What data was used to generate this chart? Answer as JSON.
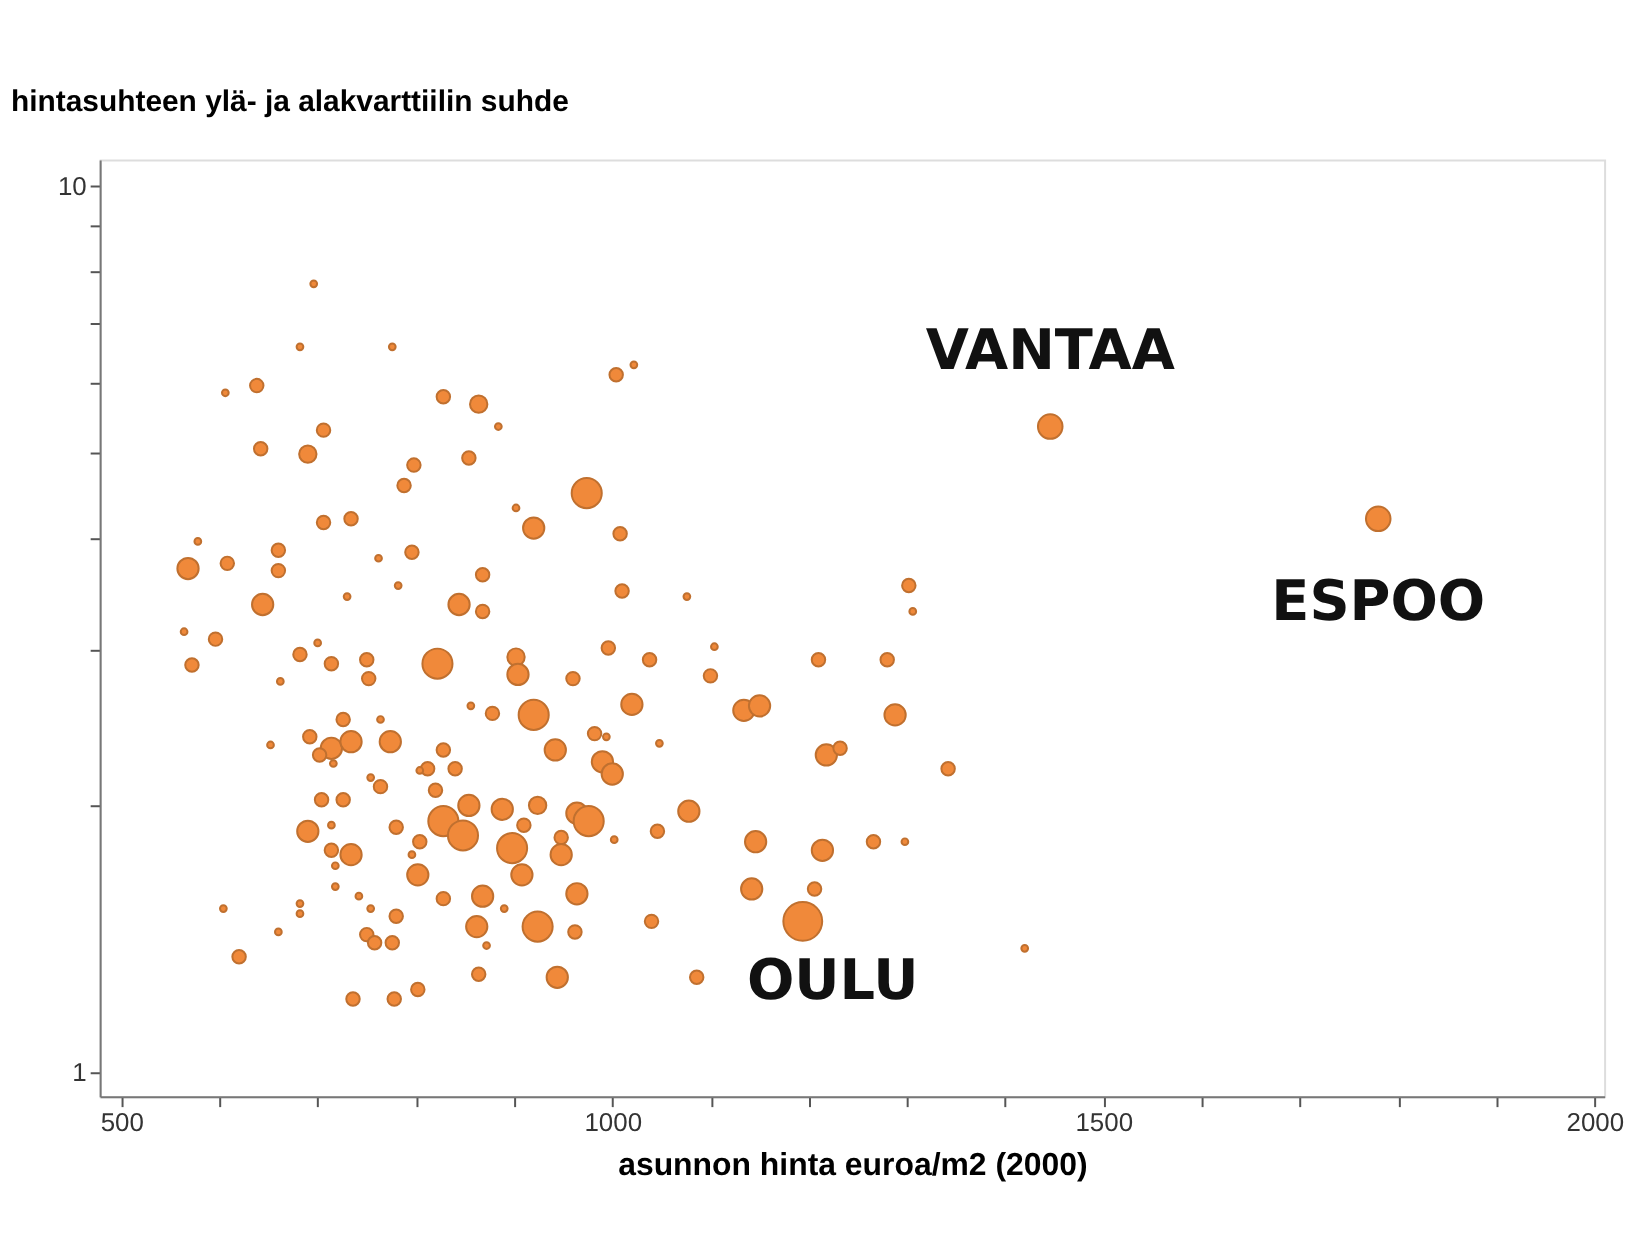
{
  "chart_data": {
    "type": "bubble",
    "ylabel": "hintasuhteen ylä- ja alakvarttiilin suhde",
    "xlabel": "asunnon hinta euroa/m2 (2000)",
    "log": "y",
    "grid": false,
    "xlim": [
      478,
      2010
    ],
    "ylim": [
      0.94,
      10.7
    ],
    "xticks": [
      500,
      {
        "value": 600,
        "label": null
      },
      {
        "value": 700,
        "label": null
      },
      {
        "value": 800,
        "label": null
      },
      {
        "value": 900,
        "label": null
      },
      1000,
      {
        "value": 1100,
        "label": null
      },
      {
        "value": 1200,
        "label": null
      },
      {
        "value": 1300,
        "label": null
      },
      {
        "value": 1400,
        "label": null
      },
      1500,
      {
        "value": 1600,
        "label": null
      },
      {
        "value": 1700,
        "label": null
      },
      {
        "value": 1800,
        "label": null
      },
      {
        "value": 1900,
        "label": null
      },
      2000
    ],
    "yticks": [
      1,
      {
        "value": 2,
        "label": null
      },
      {
        "value": 3,
        "label": null
      },
      {
        "value": 4,
        "label": null
      },
      {
        "value": 5,
        "label": null
      },
      {
        "value": 6,
        "label": null
      },
      {
        "value": 7,
        "label": null
      },
      {
        "value": 8,
        "label": null
      },
      {
        "value": 9,
        "label": null
      },
      10
    ],
    "series": [
      {
        "color": "#f0893a",
        "x": [
          696,
          682,
          776,
          606,
          638,
          828,
          864,
          884,
          706,
          642,
          690,
          798,
          854,
          788,
          1004,
          1022,
          974,
          920,
          902,
          1008,
          706,
          734,
          578,
          568,
          608,
          660,
          660,
          762,
          796,
          782,
          868,
          730,
          644,
          844,
          868,
          1010,
          1446,
          1076,
          1302,
          1306,
          564,
          596,
          572,
          682,
          700,
          714,
          750,
          752,
          822,
          902,
          904,
          960,
          662,
          856,
          878,
          920,
          1020,
          726,
          764,
          652,
          692,
          714,
          702,
          734,
          774,
          716,
          828,
          812,
          804,
          840,
          820,
          754,
          764,
          942,
          982,
          994,
          990,
          1000,
          704,
          726,
          690,
          714,
          780,
          828,
          848,
          854,
          888,
          924,
          910,
          964,
          976,
          1002,
          804,
          796,
          714,
          734,
          718,
          898,
          948,
          948,
          802,
          908,
          718,
          742,
          754,
          828,
          868,
          890,
          964,
          604,
          682,
          682,
          780,
          862,
          924,
          962,
          660,
          750,
          758,
          776,
          872,
          620,
          864,
          944,
          802,
          736,
          778,
          996,
          1038,
          1104,
          1100,
          1210,
          1280,
          1134,
          1150,
          1048,
          1288,
          1218,
          1232,
          1342,
          1078,
          1046,
          1146,
          1214,
          1266,
          1298,
          1142,
          1206,
          1194,
          1040,
          1086,
          1420,
          1780
        ],
        "values": [
          7.75,
          6.58,
          6.58,
          5.84,
          5.95,
          5.78,
          5.67,
          5.35,
          5.3,
          5.05,
          4.98,
          4.84,
          4.93,
          4.59,
          6.12,
          6.28,
          4.5,
          4.11,
          4.33,
          4.05,
          4.17,
          4.21,
          3.97,
          3.7,
          3.75,
          3.88,
          3.68,
          3.8,
          3.86,
          3.54,
          3.64,
          3.44,
          3.37,
          3.37,
          3.31,
          3.49,
          5.35,
          3.44,
          3.54,
          3.31,
          3.14,
          3.08,
          2.88,
          2.96,
          3.05,
          2.89,
          2.92,
          2.78,
          2.89,
          2.94,
          2.81,
          2.78,
          2.76,
          2.59,
          2.54,
          2.53,
          2.6,
          2.5,
          2.5,
          2.34,
          2.39,
          2.32,
          2.28,
          2.36,
          2.36,
          2.23,
          2.31,
          2.2,
          2.19,
          2.2,
          2.08,
          2.15,
          2.1,
          2.31,
          2.41,
          2.39,
          2.24,
          2.17,
          2.03,
          2.03,
          1.87,
          1.9,
          1.89,
          1.92,
          1.85,
          2.0,
          1.98,
          2.0,
          1.9,
          1.96,
          1.92,
          1.83,
          1.82,
          1.76,
          1.78,
          1.76,
          1.71,
          1.79,
          1.84,
          1.76,
          1.67,
          1.67,
          1.62,
          1.58,
          1.53,
          1.57,
          1.58,
          1.53,
          1.59,
          1.53,
          1.55,
          1.51,
          1.5,
          1.46,
          1.46,
          1.44,
          1.44,
          1.43,
          1.4,
          1.4,
          1.39,
          1.35,
          1.29,
          1.28,
          1.24,
          1.21,
          1.21,
          3.01,
          2.92,
          3.02,
          2.8,
          2.92,
          2.92,
          2.56,
          2.59,
          2.35,
          2.53,
          2.28,
          2.32,
          2.2,
          1.97,
          1.87,
          1.82,
          1.78,
          1.82,
          1.82,
          1.61,
          1.61,
          1.48,
          1.48,
          1.28,
          1.38,
          4.21
        ],
        "sizes": [
          0.03,
          0.03,
          0.03,
          0.03,
          0.12,
          0.12,
          0.2,
          0.03,
          0.12,
          0.12,
          0.2,
          0.12,
          0.12,
          0.12,
          0.12,
          0.03,
          0.6,
          0.3,
          0.03,
          0.12,
          0.12,
          0.12,
          0.03,
          0.3,
          0.12,
          0.12,
          0.12,
          0.03,
          0.12,
          0.03,
          0.12,
          0.03,
          0.3,
          0.3,
          0.12,
          0.12,
          0.4,
          0.03,
          0.12,
          0.03,
          0.03,
          0.12,
          0.12,
          0.12,
          0.03,
          0.12,
          0.12,
          0.12,
          0.6,
          0.2,
          0.3,
          0.12,
          0.03,
          0.03,
          0.12,
          0.6,
          0.3,
          0.12,
          0.03,
          0.03,
          0.12,
          0.3,
          0.12,
          0.3,
          0.3,
          0.03,
          0.12,
          0.12,
          0.03,
          0.12,
          0.12,
          0.03,
          0.12,
          0.3,
          0.12,
          0.03,
          0.3,
          0.3,
          0.12,
          0.12,
          0.3,
          0.03,
          0.12,
          0.6,
          0.6,
          0.3,
          0.3,
          0.2,
          0.12,
          0.3,
          0.6,
          0.03,
          0.12,
          0.03,
          0.12,
          0.3,
          0.03,
          0.6,
          0.12,
          0.3,
          0.3,
          0.3,
          0.03,
          0.03,
          0.03,
          0.12,
          0.3,
          0.03,
          0.3,
          0.03,
          0.03,
          0.03,
          0.12,
          0.3,
          0.6,
          0.12,
          0.03,
          0.12,
          0.12,
          0.12,
          0.03,
          0.12,
          0.12,
          0.3,
          0.12,
          0.12,
          0.12,
          0.12,
          0.12,
          0.03,
          0.12,
          0.12,
          0.12,
          0.3,
          0.3,
          0.03,
          0.3,
          0.3,
          0.12,
          0.12,
          0.3,
          0.12,
          0.3,
          0.3,
          0.12,
          0.03,
          0.3,
          0.12,
          1,
          0.12,
          0.12,
          0.03,
          0.4
        ]
      }
    ],
    "annotations": [
      {
        "text": "VANTAA",
        "x": 1446,
        "y": 5.35
      },
      {
        "text": "ESPOO",
        "x": 1780,
        "y": 4.21
      },
      {
        "text": "OULU",
        "x": 1194,
        "y": 1.48
      }
    ]
  }
}
